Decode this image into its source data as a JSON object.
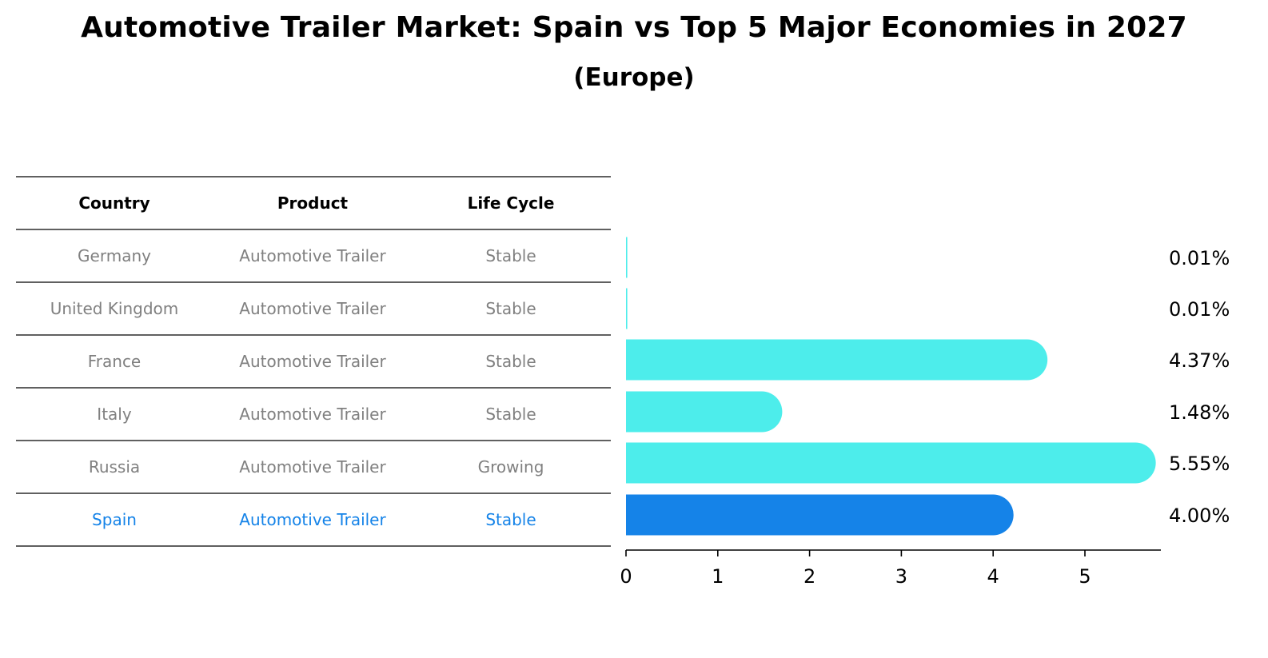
{
  "title": "Automotive Trailer Market: Spain vs Top 5 Major Economies in 2027",
  "subtitle": "(Europe)",
  "table": {
    "headers": [
      "Country",
      "Product",
      "Life Cycle"
    ],
    "rows": [
      {
        "country": "Germany",
        "product": "Automotive Trailer",
        "life_cycle": "Stable"
      },
      {
        "country": "United Kingdom",
        "product": "Automotive Trailer",
        "life_cycle": "Stable"
      },
      {
        "country": "France",
        "product": "Automotive Trailer",
        "life_cycle": "Stable"
      },
      {
        "country": "Italy",
        "product": "Automotive Trailer",
        "life_cycle": "Stable"
      },
      {
        "country": "Russia",
        "product": "Automotive Trailer",
        "life_cycle": "Growing"
      },
      {
        "country": "Spain",
        "product": "Automotive Trailer",
        "life_cycle": "Stable"
      }
    ],
    "highlight_country": "Spain"
  },
  "colors": {
    "bar": "#4dedeb",
    "highlight": "#1583e8",
    "muted_text": "#808080"
  },
  "chart_data": {
    "type": "bar",
    "orientation": "horizontal",
    "categories": [
      "Germany",
      "United Kingdom",
      "France",
      "Italy",
      "Russia",
      "Spain"
    ],
    "values": [
      0.01,
      0.01,
      4.37,
      1.48,
      5.55,
      4.0
    ],
    "value_labels": [
      "0.01%",
      "0.01%",
      "4.37%",
      "1.48%",
      "5.55%",
      "4.00%"
    ],
    "xlim": [
      0,
      5.85
    ],
    "xticks": [
      0,
      1,
      2,
      3,
      4,
      5
    ],
    "highlight_index": 5,
    "grid": false
  }
}
